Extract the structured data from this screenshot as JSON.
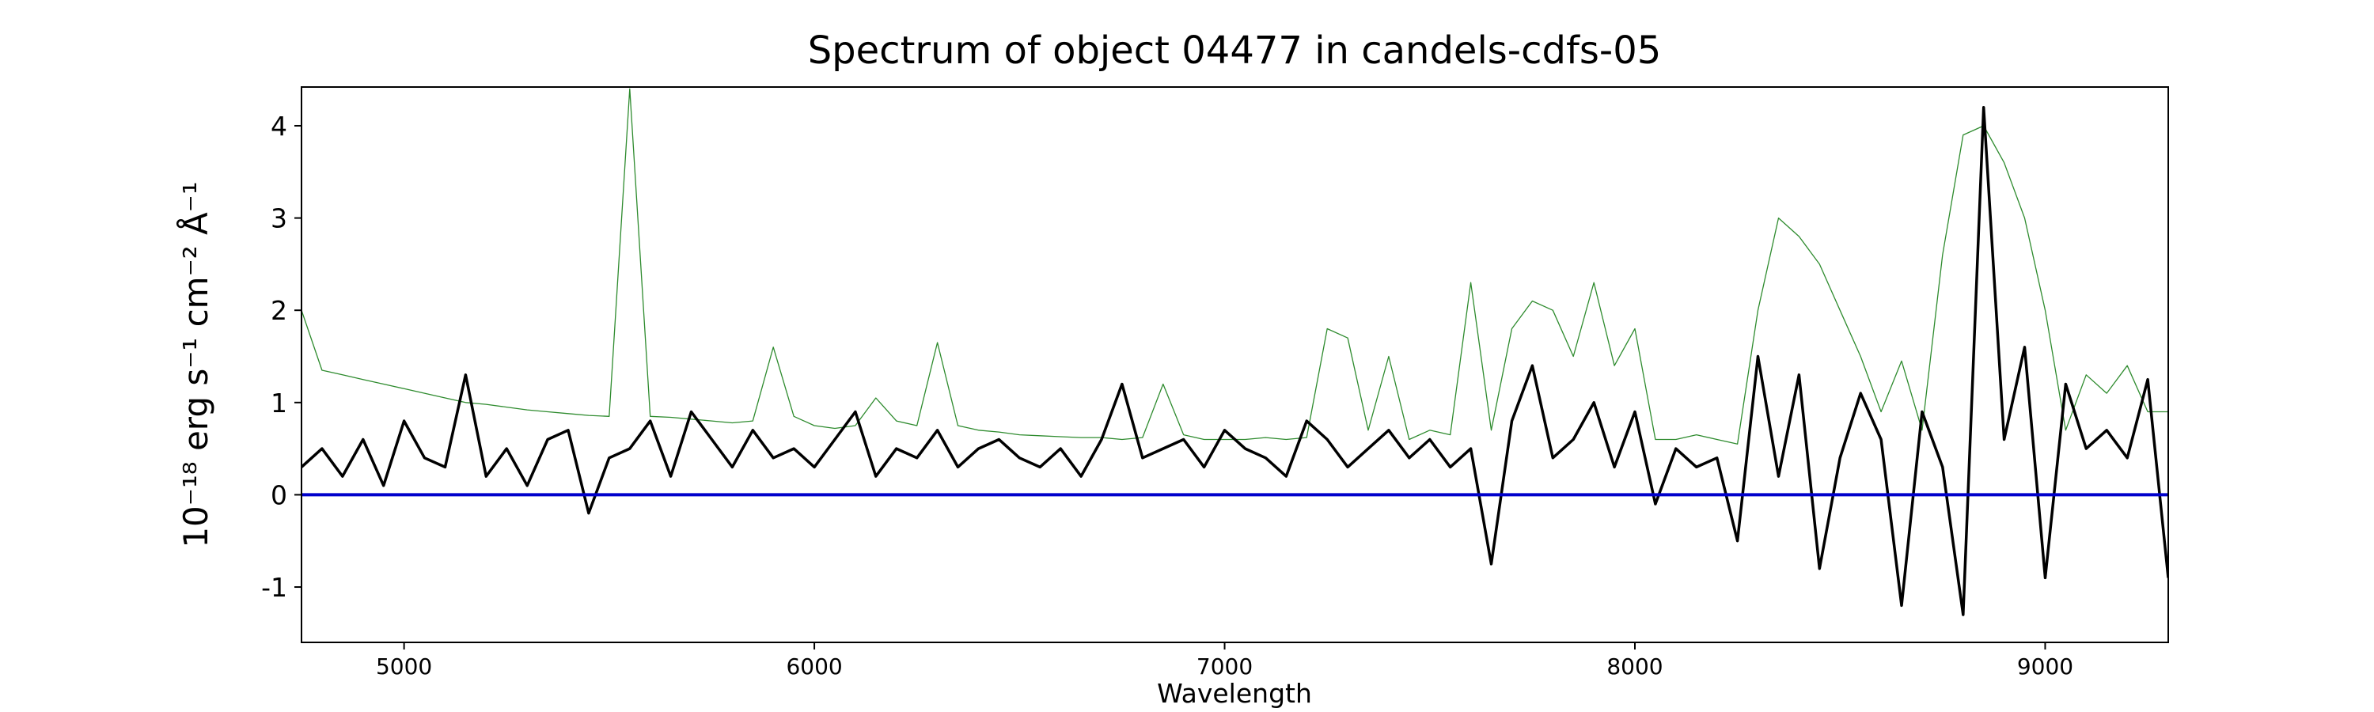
{
  "chart_data": {
    "type": "line",
    "title": "Spectrum of object 04477 in candels-cdfs-05",
    "xlabel": "Wavelength",
    "ylabel": "10⁻¹⁸ erg s⁻¹ cm⁻² Å⁻¹",
    "x": [
      4750,
      4800,
      4850,
      4900,
      4950,
      5000,
      5050,
      5100,
      5150,
      5200,
      5250,
      5300,
      5350,
      5400,
      5450,
      5500,
      5550,
      5600,
      5650,
      5700,
      5750,
      5800,
      5850,
      5900,
      5950,
      6000,
      6050,
      6100,
      6150,
      6200,
      6250,
      6300,
      6350,
      6400,
      6450,
      6500,
      6550,
      6600,
      6650,
      6700,
      6750,
      6800,
      6850,
      6900,
      6950,
      7000,
      7050,
      7100,
      7150,
      7200,
      7250,
      7300,
      7350,
      7400,
      7450,
      7500,
      7550,
      7600,
      7650,
      7700,
      7750,
      7800,
      7850,
      7900,
      7950,
      8000,
      8050,
      8100,
      8150,
      8200,
      8250,
      8300,
      8350,
      8400,
      8450,
      8500,
      8550,
      8600,
      8650,
      8700,
      8750,
      8800,
      8850,
      8900,
      8950,
      9000,
      9050,
      9100,
      9150,
      9200,
      9250,
      9300
    ],
    "series": [
      {
        "color": "#2e8b2e",
        "width": 1.3,
        "values": [
          2.0,
          1.35,
          1.3,
          1.25,
          1.2,
          1.15,
          1.1,
          1.05,
          1.0,
          0.98,
          0.95,
          0.92,
          0.9,
          0.88,
          0.86,
          0.85,
          4.4,
          0.85,
          0.84,
          0.82,
          0.8,
          0.78,
          0.8,
          1.6,
          0.85,
          0.75,
          0.72,
          0.75,
          1.05,
          0.8,
          0.75,
          1.65,
          0.75,
          0.7,
          0.68,
          0.65,
          0.64,
          0.63,
          0.62,
          0.62,
          0.6,
          0.62,
          1.2,
          0.65,
          0.6,
          0.6,
          0.6,
          0.62,
          0.6,
          0.62,
          1.8,
          1.7,
          0.7,
          1.5,
          0.6,
          0.7,
          0.65,
          2.3,
          0.7,
          1.8,
          2.1,
          2.0,
          1.5,
          2.3,
          1.4,
          1.8,
          0.6,
          0.6,
          0.65,
          0.6,
          0.55,
          2.0,
          3.0,
          2.8,
          2.5,
          2.0,
          1.5,
          0.9,
          1.45,
          0.7,
          2.6,
          3.9,
          4.0,
          3.6,
          3.0,
          2.0,
          0.7,
          1.3,
          1.1,
          1.4,
          0.9,
          0.9
        ]
      },
      {
        "color": "#000000",
        "width": 3.5,
        "values": [
          0.3,
          0.5,
          0.2,
          0.6,
          0.1,
          0.8,
          0.4,
          0.3,
          1.3,
          0.2,
          0.5,
          0.1,
          0.6,
          0.7,
          -0.2,
          0.4,
          0.5,
          0.8,
          0.2,
          0.9,
          0.6,
          0.3,
          0.7,
          0.4,
          0.5,
          0.3,
          0.6,
          0.9,
          0.2,
          0.5,
          0.4,
          0.7,
          0.3,
          0.5,
          0.6,
          0.4,
          0.3,
          0.5,
          0.2,
          0.6,
          1.2,
          0.4,
          0.5,
          0.6,
          0.3,
          0.7,
          0.5,
          0.4,
          0.2,
          0.8,
          0.6,
          0.3,
          0.5,
          0.7,
          0.4,
          0.6,
          0.3,
          0.5,
          -0.75,
          0.8,
          1.4,
          0.4,
          0.6,
          1.0,
          0.3,
          0.9,
          -0.1,
          0.5,
          0.3,
          0.4,
          -0.5,
          1.5,
          0.2,
          1.3,
          -0.8,
          0.4,
          1.1,
          0.6,
          -1.2,
          0.9,
          0.3,
          -1.3,
          4.2,
          0.6,
          1.6,
          -0.9,
          1.2,
          0.5,
          0.7,
          0.4,
          1.25,
          -0.9
        ]
      }
    ],
    "reference_line": {
      "value": 0,
      "color": "#0000cc"
    },
    "xlim": [
      4750,
      9300
    ],
    "ylim": [
      -1.6,
      4.42
    ],
    "xticks": [
      5000,
      6000,
      7000,
      8000,
      9000
    ],
    "yticks": [
      -1,
      0,
      1,
      2,
      3,
      4
    ],
    "grid": false
  }
}
